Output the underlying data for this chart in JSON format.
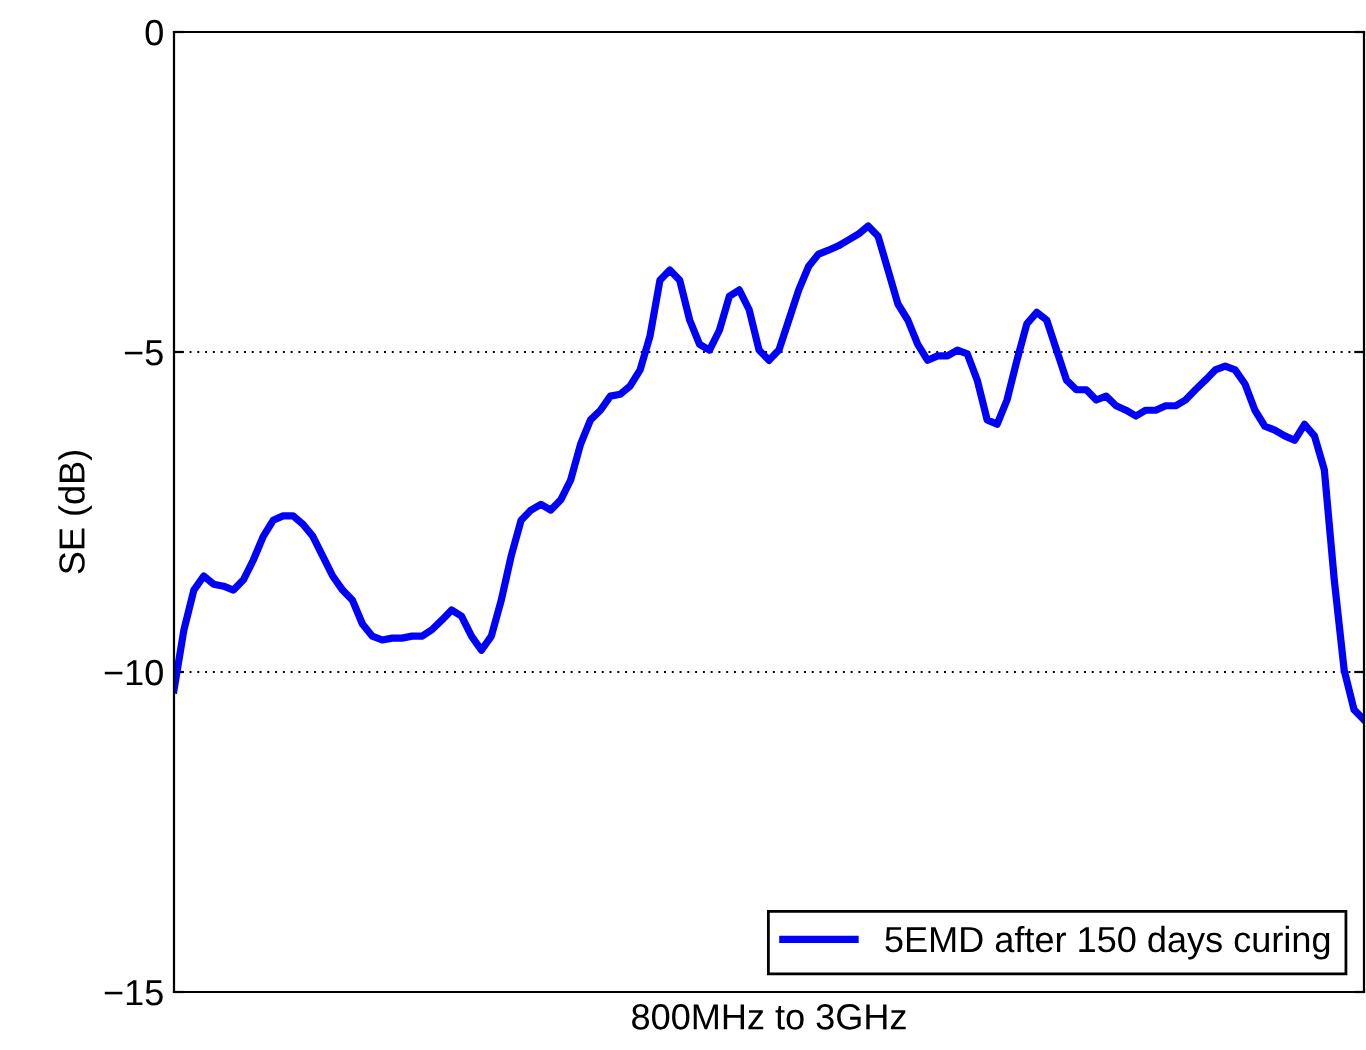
{
  "chart_data": {
    "type": "line",
    "xlabel": "800MHz to 3GHz",
    "ylabel": "SE (dB)",
    "categories": [
      null,
      null,
      null,
      null,
      null,
      null,
      null,
      null,
      null,
      null,
      null,
      null,
      null,
      null,
      null,
      null,
      null,
      null,
      null,
      null,
      null,
      null,
      null,
      null,
      null,
      null,
      null,
      null,
      null,
      null,
      null,
      null,
      null,
      null,
      null,
      null,
      null,
      null,
      null,
      null,
      null,
      null,
      null,
      null,
      null,
      null,
      null,
      null,
      null,
      null,
      null,
      null,
      null,
      null,
      null,
      null,
      null,
      null,
      null,
      null,
      null,
      null,
      null,
      null,
      null,
      null,
      null,
      null,
      null,
      null,
      null,
      null,
      null,
      null,
      null,
      null,
      null,
      null,
      null,
      null,
      null,
      null,
      null,
      null,
      null,
      null,
      null,
      null,
      null,
      null,
      null,
      null,
      null,
      null,
      null,
      null,
      null,
      null,
      null,
      null,
      null,
      null,
      null,
      null,
      null,
      null,
      null,
      null,
      null,
      null,
      null,
      null,
      null,
      null,
      null,
      null,
      null,
      null,
      null,
      null,
      null
    ],
    "series": [
      {
        "name": "5EMD after 150 days curing",
        "color": "#0000ff",
        "values": [
          -10.28,
          -9.34,
          -8.72,
          -8.5,
          -8.63,
          -8.66,
          -8.72,
          -8.56,
          -8.25,
          -7.88,
          -7.63,
          -7.56,
          -7.56,
          -7.69,
          -7.88,
          -8.19,
          -8.5,
          -8.72,
          -8.88,
          -9.25,
          -9.44,
          -9.5,
          -9.47,
          -9.47,
          -9.44,
          -9.44,
          -9.34,
          -9.19,
          -9.03,
          -9.13,
          -9.44,
          -9.66,
          -9.44,
          -8.88,
          -8.19,
          -7.63,
          -7.47,
          -7.38,
          -7.47,
          -7.31,
          -7.0,
          -6.44,
          -6.06,
          -5.91,
          -5.69,
          -5.66,
          -5.53,
          -5.28,
          -4.75,
          -3.88,
          -3.72,
          -3.88,
          -4.5,
          -4.88,
          -4.97,
          -4.66,
          -4.13,
          -4.03,
          -4.34,
          -4.97,
          -5.13,
          -4.97,
          -4.5,
          -4.03,
          -3.66,
          -3.47,
          -3.41,
          -3.34,
          -3.25,
          -3.16,
          -3.03,
          -3.19,
          -3.72,
          -4.25,
          -4.5,
          -4.88,
          -5.13,
          -5.06,
          -5.06,
          -4.97,
          -5.03,
          -5.44,
          -6.06,
          -6.13,
          -5.75,
          -5.13,
          -4.56,
          -4.38,
          -4.5,
          -4.97,
          -5.44,
          -5.59,
          -5.59,
          -5.75,
          -5.69,
          -5.84,
          -5.91,
          -6.0,
          -5.91,
          -5.91,
          -5.84,
          -5.84,
          -5.75,
          -5.59,
          -5.44,
          -5.28,
          -5.22,
          -5.28,
          -5.5,
          -5.91,
          -6.16,
          -6.22,
          -6.31,
          -6.38,
          -6.13,
          -6.31,
          -6.84,
          -8.56,
          -9.97,
          -10.59,
          -10.75
        ]
      }
    ],
    "ylim": [
      -15,
      0
    ],
    "yticks": [
      {
        "value": -15,
        "label": "−15"
      },
      {
        "value": -10,
        "label": "−10"
      },
      {
        "value": -5,
        "label": "−5"
      },
      0
    ],
    "grid": "y",
    "legend": "lower right",
    "tick_labels": "y",
    "line_style": "solid",
    "marker": "none"
  }
}
